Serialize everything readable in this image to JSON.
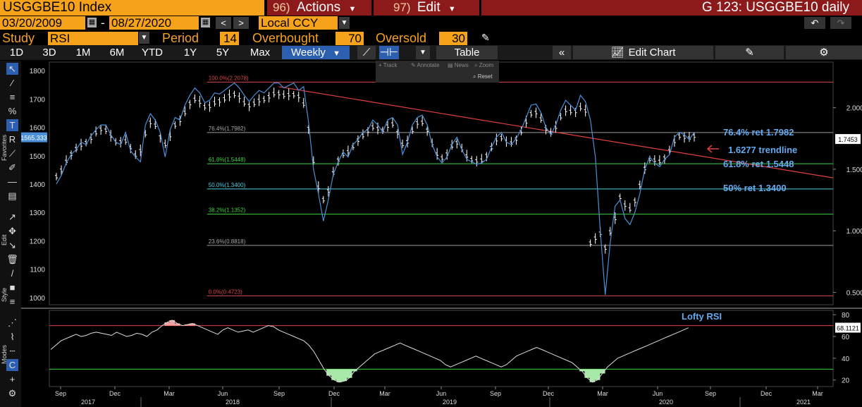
{
  "header": {
    "ticker": "USGGBE10 Index",
    "actions": {
      "num": "96)",
      "label": "Actions"
    },
    "edit": {
      "num": "97)",
      "label": "Edit"
    },
    "title": "G 123: USGGBE10 daily"
  },
  "range": {
    "start": "03/20/2009",
    "dash": "-",
    "end": "08/27/2020",
    "currency": "Local CCY"
  },
  "study": {
    "study_label": "Study",
    "study_value": "RSI",
    "period_label": "Period",
    "period_value": "14",
    "overbought_label": "Overbought",
    "overbought_value": "70",
    "oversold_label": "Oversold",
    "oversold_value": "30"
  },
  "toolbar": {
    "ranges": [
      "1D",
      "3D",
      "1M",
      "6M",
      "YTD",
      "1Y",
      "5Y",
      "Max"
    ],
    "frequency": "Weekly",
    "table": "Table",
    "edit_chart": "Edit Chart"
  },
  "popup": {
    "track": "Track",
    "annotate": "Annotate",
    "news": "News",
    "zoom": "Zoom",
    "reset": "Reset"
  },
  "left_labels": {
    "favorites": "Favorites",
    "edit": "Edit",
    "style": "Style",
    "modes": "Modes"
  },
  "colors": {
    "panel_orange": "#f7a21b",
    "title_red": "#8c1a1a",
    "price_line": "#4a90d9",
    "trend_red": "#e04040",
    "fib_green": "#3cd43c",
    "fib_cyan": "#4dd0e1",
    "annot_blue": "#66aaf0"
  },
  "chart_data": [
    {
      "type": "ohlc",
      "name": "price",
      "y_left_ticks": [
        1000,
        1100,
        1200,
        1300,
        1400,
        1500,
        1600,
        1700,
        1800
      ],
      "y_left_range": [
        975,
        1830
      ],
      "y_right_ticks": [
        {
          "label": "0.5000",
          "value": 0.5
        },
        {
          "label": "1.0000",
          "value": 1.0
        },
        {
          "label": "1.5000",
          "value": 1.5
        },
        {
          "label": "2.0000",
          "value": 2.0
        }
      ],
      "y_right_range": [
        0.4,
        2.37
      ],
      "left_last_value": "1565.333",
      "right_last_value": "1.7453",
      "x_month_labels": [
        "Sep",
        "Dec",
        "Mar",
        "Jun",
        "Sep",
        "Dec",
        "Mar",
        "Jun",
        "Sep",
        "Dec",
        "Mar",
        "Jun",
        "Sep",
        "Dec",
        "Mar"
      ],
      "x_year_labels": [
        "2017",
        "2018",
        "2019",
        "2020",
        "2021"
      ],
      "fib_levels": [
        {
          "label": "100.0%(2.2078)",
          "value": 2.2078
        },
        {
          "label": "76.4%(1.7982)",
          "value": 1.7982
        },
        {
          "label": "61.8%(1.5448)",
          "value": 1.5448
        },
        {
          "label": "50.0%(1.3400)",
          "value": 1.34
        },
        {
          "label": "38.2%(1.1352)",
          "value": 1.1352
        },
        {
          "label": "23.6%(0.8818)",
          "value": 0.8818
        },
        {
          "label": "0.0%(0.4723)",
          "value": 0.4723
        }
      ],
      "annotations": [
        "76.4% ret 1.7982",
        "1.6277 trendline",
        "61.8% ret 1.5448",
        "50% ret 1.3400"
      ],
      "line_series": [
        1.38,
        1.45,
        1.55,
        1.62,
        1.66,
        1.72,
        1.7,
        1.77,
        1.82,
        1.86,
        1.86,
        1.78,
        1.72,
        1.7,
        1.8,
        1.65,
        1.6,
        1.56,
        1.86,
        1.95,
        1.9,
        1.8,
        1.6,
        1.82,
        1.92,
        1.9,
        2.02,
        2.1,
        2.16,
        2.12,
        2.04,
        2.06,
        2.12,
        2.11,
        2.14,
        2.17,
        2.2,
        2.16,
        2.1,
        2.05,
        2.1,
        2.14,
        2.12,
        2.16,
        2.2,
        2.2,
        2.16,
        2.18,
        2.2,
        2.14,
        2.17,
        1.88,
        1.5,
        1.3,
        1.08,
        1.25,
        1.46,
        1.56,
        1.64,
        1.6,
        1.7,
        1.74,
        1.8,
        1.82,
        1.9,
        1.86,
        1.8,
        1.9,
        1.92,
        1.86,
        1.62,
        1.72,
        1.86,
        1.92,
        1.94,
        1.86,
        1.7,
        1.6,
        1.55,
        1.6,
        1.7,
        1.76,
        1.66,
        1.58,
        1.56,
        1.54,
        1.55,
        1.58,
        1.68,
        1.76,
        1.8,
        1.72,
        1.7,
        1.75,
        1.82,
        1.92,
        2.02,
        2.03,
        1.96,
        1.84,
        1.78,
        1.86,
        1.98,
        2.06,
        2.02,
        1.98,
        2.1,
        2.05,
        1.9,
        1.6,
        1.0,
        0.48,
        0.9,
        1.2,
        1.25,
        1.1,
        1.05,
        1.15,
        1.3,
        1.5,
        1.6,
        1.55,
        1.52,
        1.58,
        1.62,
        1.76,
        1.8,
        1.78,
        1.74,
        1.8
      ]
    },
    {
      "type": "line",
      "name": "RSI",
      "label": "Lofty RSI",
      "y_ticks": [
        20,
        40,
        60,
        80
      ],
      "y_range": [
        14,
        84
      ],
      "overbought": 70,
      "oversold": 30,
      "last_value": "68.1121",
      "values": [
        48,
        52,
        56,
        58,
        60,
        62,
        60,
        61,
        63,
        64,
        63,
        62,
        61,
        64,
        62,
        60,
        61,
        63,
        62,
        60,
        64,
        66,
        70,
        73,
        75,
        72,
        70,
        71,
        72,
        70,
        68,
        66,
        64,
        62,
        66,
        68,
        66,
        64,
        65,
        66,
        64,
        66,
        68,
        70,
        69,
        66,
        64,
        62,
        60,
        58,
        56,
        52,
        46,
        38,
        30,
        24,
        20,
        18,
        19,
        22,
        28,
        32,
        36,
        40,
        44,
        46,
        48,
        50,
        52,
        54,
        52,
        50,
        48,
        46,
        44,
        42,
        40,
        38,
        34,
        32,
        34,
        36,
        38,
        40,
        42,
        40,
        38,
        36,
        34,
        32,
        34,
        38,
        42,
        44,
        46,
        48,
        50,
        48,
        46,
        44,
        42,
        40,
        38,
        36,
        32,
        28,
        22,
        18,
        20,
        26,
        32,
        36,
        40,
        42,
        44,
        46,
        48,
        50,
        52,
        54,
        56,
        58,
        60,
        62,
        64,
        66,
        68
      ]
    }
  ]
}
